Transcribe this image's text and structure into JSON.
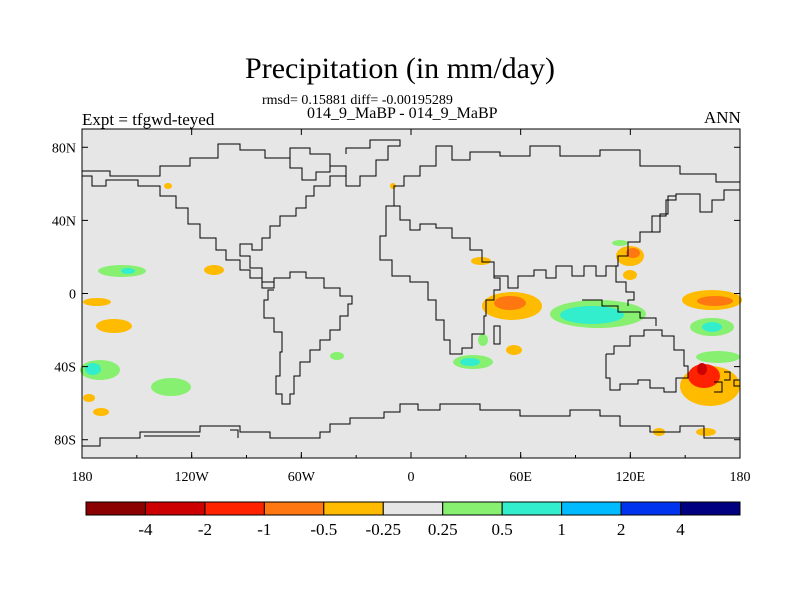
{
  "chart_data": {
    "type": "heatmap",
    "title": "Precipitation (in mm/day)",
    "stats_line": "rmsd= 0.15881 diff= -0.00195289",
    "subtitle": "014_9_MaBP - 014_9_MaBP",
    "left_label": "Expt = tfgwd-teyed",
    "right_label": "ANN",
    "x_ticks": [
      "180",
      "120W",
      "60W",
      "0",
      "60E",
      "120E",
      "180"
    ],
    "y_ticks": [
      "80N",
      "40N",
      "0",
      "40S",
      "80S"
    ],
    "xlim": [
      -180,
      180
    ],
    "ylim": [
      -90,
      90
    ],
    "colorbar": {
      "labels": [
        "-4",
        "-2",
        "-1",
        "-0.5",
        "-0.25",
        "0.25",
        "0.5",
        "1",
        "2",
        "4"
      ],
      "colors": [
        "#8b0000",
        "#cc0000",
        "#ff2200",
        "#ff7711",
        "#ffbb00",
        "#e6e6e6",
        "#88f070",
        "#33eecc",
        "#00bbff",
        "#0033ee",
        "#000080"
      ]
    },
    "colors": {
      "background": "#e6e6e6",
      "coast": "#000000"
    }
  }
}
